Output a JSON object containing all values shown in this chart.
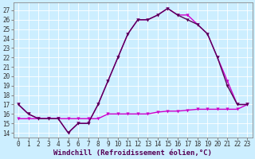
{
  "xlabel": "Windchill (Refroidissement éolien,°C)",
  "background_color": "#cceeff",
  "grid_color": "#ffffff",
  "line_color1": "#cc00cc",
  "line_color2": "#550055",
  "x_values": [
    0,
    1,
    2,
    3,
    4,
    5,
    6,
    7,
    8,
    9,
    10,
    11,
    12,
    13,
    14,
    15,
    16,
    17,
    18,
    19,
    20,
    21,
    22,
    23
  ],
  "y_line1": [
    17,
    16,
    15.5,
    15.5,
    15.5,
    14,
    15,
    15,
    17,
    19.5,
    22,
    24.5,
    26,
    26,
    26.5,
    27.2,
    26.5,
    26.5,
    25.5,
    24.5,
    22,
    19.5,
    17,
    17
  ],
  "y_line2": [
    17,
    16,
    15.5,
    15.5,
    15.5,
    14,
    15,
    15,
    17,
    19.5,
    22,
    24.5,
    26,
    26,
    26.5,
    27.2,
    26.5,
    26,
    25.5,
    24.5,
    22,
    19,
    17,
    17
  ],
  "y_line3": [
    15.5,
    15.5,
    15.5,
    15.5,
    15.5,
    15.5,
    15.5,
    15.5,
    15.5,
    16,
    16,
    16,
    16,
    16,
    16.2,
    16.3,
    16.3,
    16.4,
    16.5,
    16.5,
    16.5,
    16.5,
    16.5,
    17
  ],
  "xlim": [
    -0.5,
    23.5
  ],
  "ylim": [
    13.5,
    27.8
  ],
  "yticks": [
    14,
    15,
    16,
    17,
    18,
    19,
    20,
    21,
    22,
    23,
    24,
    25,
    26,
    27
  ],
  "xticks": [
    0,
    1,
    2,
    3,
    4,
    5,
    6,
    7,
    8,
    9,
    10,
    11,
    12,
    13,
    14,
    15,
    16,
    17,
    18,
    19,
    20,
    21,
    22,
    23
  ],
  "marker": "v",
  "marker_size": 3,
  "linewidth": 1.0,
  "xlabel_fontsize": 6.5,
  "tick_fontsize": 5.5,
  "xlabel_color": "#550055",
  "xlabel_fontfamily": "monospace"
}
